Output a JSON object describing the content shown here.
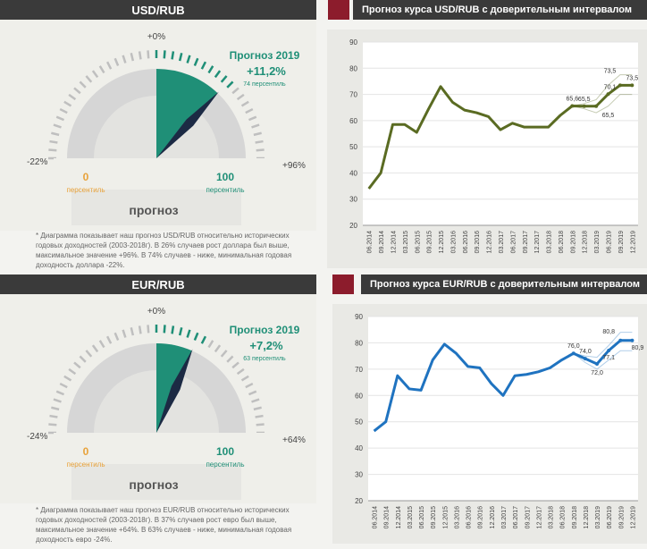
{
  "panels": [
    {
      "header": "USD/RUB",
      "zero_label": "+0%",
      "left_label": "-22%",
      "right_label": "+96%",
      "forecast_title": "Прогноз 2019",
      "forecast_value": "+11,2%",
      "forecast_percentile": "74 персентиль",
      "p0_value": "0",
      "p0_label": "персентиль",
      "p100_value": "100",
      "p100_label": "персентиль",
      "gauge_caption": "прогноз",
      "needle_percentile": 74,
      "note": "* Диаграмма показывает наш прогноз USD/RUB относительно исторических годовых доходностей (2003-2018г). В 26% случаев рост доллара был выше, максимальное значение +96%. В 74% случаев - ниже, минимальная годовая доходность доллара -22%."
    },
    {
      "header": "EUR/RUB",
      "zero_label": "+0%",
      "left_label": "-24%",
      "right_label": "+64%",
      "forecast_title": "Прогноз 2019",
      "forecast_value": "+7,2%",
      "forecast_percentile": "63 персентиль",
      "p0_value": "0",
      "p0_label": "персентиль",
      "p100_value": "100",
      "p100_label": "персентиль",
      "gauge_caption": "прогноз",
      "needle_percentile": 63,
      "note": "* Диаграмма показывает наш прогноз EUR/RUB относительно исторических годовых доходностей (2003-2018г). В 37% случаев рост евро был выше, максимальное значение +64%. В 63% случаев - ниже, минимальная годовая доходность евро -24%."
    }
  ],
  "colors": {
    "usd_line": "#5a6b22",
    "eur_line": "#1f73c0",
    "teal": "#1f8f77",
    "orange": "#e8a23a",
    "red": "#8c1c2c"
  },
  "chart_data": [
    {
      "type": "line",
      "title": "Прогноз курса USD/RUB с доверительным интервалом",
      "x": [
        "06.2014",
        "09.2014",
        "12.2014",
        "03.2015",
        "06.2015",
        "09.2015",
        "12.2015",
        "03.2016",
        "06.2016",
        "09.2016",
        "12.2016",
        "03.2017",
        "06.2017",
        "09.2017",
        "12.2017",
        "03.2018",
        "06.2018",
        "09.2018",
        "12.2018",
        "03.2019",
        "06.2019",
        "09.2019",
        "12.2019"
      ],
      "x_ticks": [
        "06.2014",
        "09.2014",
        "12.2014",
        "03.2015",
        "06.2015",
        "09.2015",
        "12.2015",
        "03.2016",
        "06.2016",
        "09.2016",
        "12.2016",
        "03.2017",
        "06.2017",
        "09.2017",
        "12.2017",
        "03.2018",
        "06.2018",
        "09.2018",
        "12.2018",
        "03.2019",
        "06.2019",
        "09.2019",
        "12.2019"
      ],
      "ylim": [
        20,
        90
      ],
      "yticks": [
        20,
        30,
        40,
        50,
        60,
        70,
        80,
        90
      ],
      "series": [
        {
          "values": [
            34,
            40,
            58.5,
            58.5,
            55.5,
            64.5,
            73,
            67,
            64,
            63,
            61.5,
            56.5,
            59,
            57.5,
            57.5,
            57.5,
            62,
            65.6,
            65.5,
            65.5,
            70.1,
            73.5,
            73.5
          ]
        }
      ],
      "band_upper": [
        null,
        null,
        null,
        null,
        null,
        null,
        null,
        null,
        null,
        null,
        null,
        null,
        null,
        null,
        null,
        null,
        null,
        65.6,
        66.5,
        68,
        73.5,
        77.5,
        77.5
      ],
      "band_lower": [
        null,
        null,
        null,
        null,
        null,
        null,
        null,
        null,
        null,
        null,
        null,
        null,
        null,
        null,
        null,
        null,
        null,
        65.6,
        64.5,
        63,
        65.5,
        70,
        70
      ],
      "data_labels": [
        {
          "text": "65,6",
          "x": "09.2018",
          "y": 65.6
        },
        {
          "text": "65,5",
          "x": "12.2018",
          "y": 65.5
        },
        {
          "text": "65,5",
          "x": "06.2019",
          "y": 65.5
        },
        {
          "text": "70,1",
          "x": "06.2019",
          "y": 70.1
        },
        {
          "text": "73,5",
          "x": "06.2019",
          "y": 73.5
        },
        {
          "text": "73,5",
          "x": "12.2019",
          "y": 73.5
        }
      ]
    },
    {
      "type": "line",
      "title": "Прогноз курса EUR/RUB с доверительным интервалом",
      "x": [
        "06.2014",
        "09.2014",
        "12.2014",
        "03.2015",
        "06.2015",
        "09.2015",
        "12.2015",
        "03.2016",
        "06.2016",
        "09.2016",
        "12.2016",
        "03.2017",
        "06.2017",
        "09.2017",
        "12.2017",
        "03.2018",
        "06.2018",
        "09.2018",
        "12.2018",
        "03.2019",
        "06.2019",
        "09.2019",
        "12.2019"
      ],
      "x_ticks": [
        "06.2014",
        "09.2014",
        "12.2014",
        "03.2015",
        "06.2015",
        "09.2015",
        "12.2015",
        "03.2016",
        "06.2016",
        "09.2016",
        "12.2016",
        "03.2017",
        "06.2017",
        "09.2017",
        "12.2017",
        "03.2018",
        "06.2018",
        "09.2018",
        "12.2018",
        "03.2019",
        "06.2019",
        "09.2019",
        "12.2019"
      ],
      "ylim": [
        20,
        90
      ],
      "yticks": [
        20,
        30,
        40,
        50,
        60,
        70,
        80,
        90
      ],
      "series": [
        {
          "values": [
            46.5,
            50,
            67.5,
            62.5,
            62,
            73.5,
            79.5,
            76,
            71,
            70.5,
            64.5,
            60,
            67.5,
            68,
            69,
            70.5,
            73.5,
            76,
            74,
            72,
            77.1,
            80.9,
            80.9
          ]
        }
      ],
      "band_upper": [
        null,
        null,
        null,
        null,
        null,
        null,
        null,
        null,
        null,
        null,
        null,
        null,
        null,
        null,
        null,
        null,
        null,
        76,
        75,
        74.5,
        79,
        84,
        84
      ],
      "band_lower": [
        null,
        null,
        null,
        null,
        null,
        null,
        null,
        null,
        null,
        null,
        null,
        null,
        null,
        null,
        null,
        null,
        null,
        76,
        72.5,
        70,
        73.5,
        77,
        77
      ],
      "data_labels": [
        {
          "text": "76,0",
          "x": "09.2018",
          "y": 76.0
        },
        {
          "text": "74,0",
          "x": "12.2018",
          "y": 74.0
        },
        {
          "text": "72,0",
          "x": "03.2019",
          "y": 72.0
        },
        {
          "text": "80,8",
          "x": "06.2019",
          "y": 80.8
        },
        {
          "text": "77,1",
          "x": "06.2019",
          "y": 77.1
        },
        {
          "text": "80,9",
          "x": "12.2019",
          "y": 80.9
        }
      ]
    }
  ]
}
